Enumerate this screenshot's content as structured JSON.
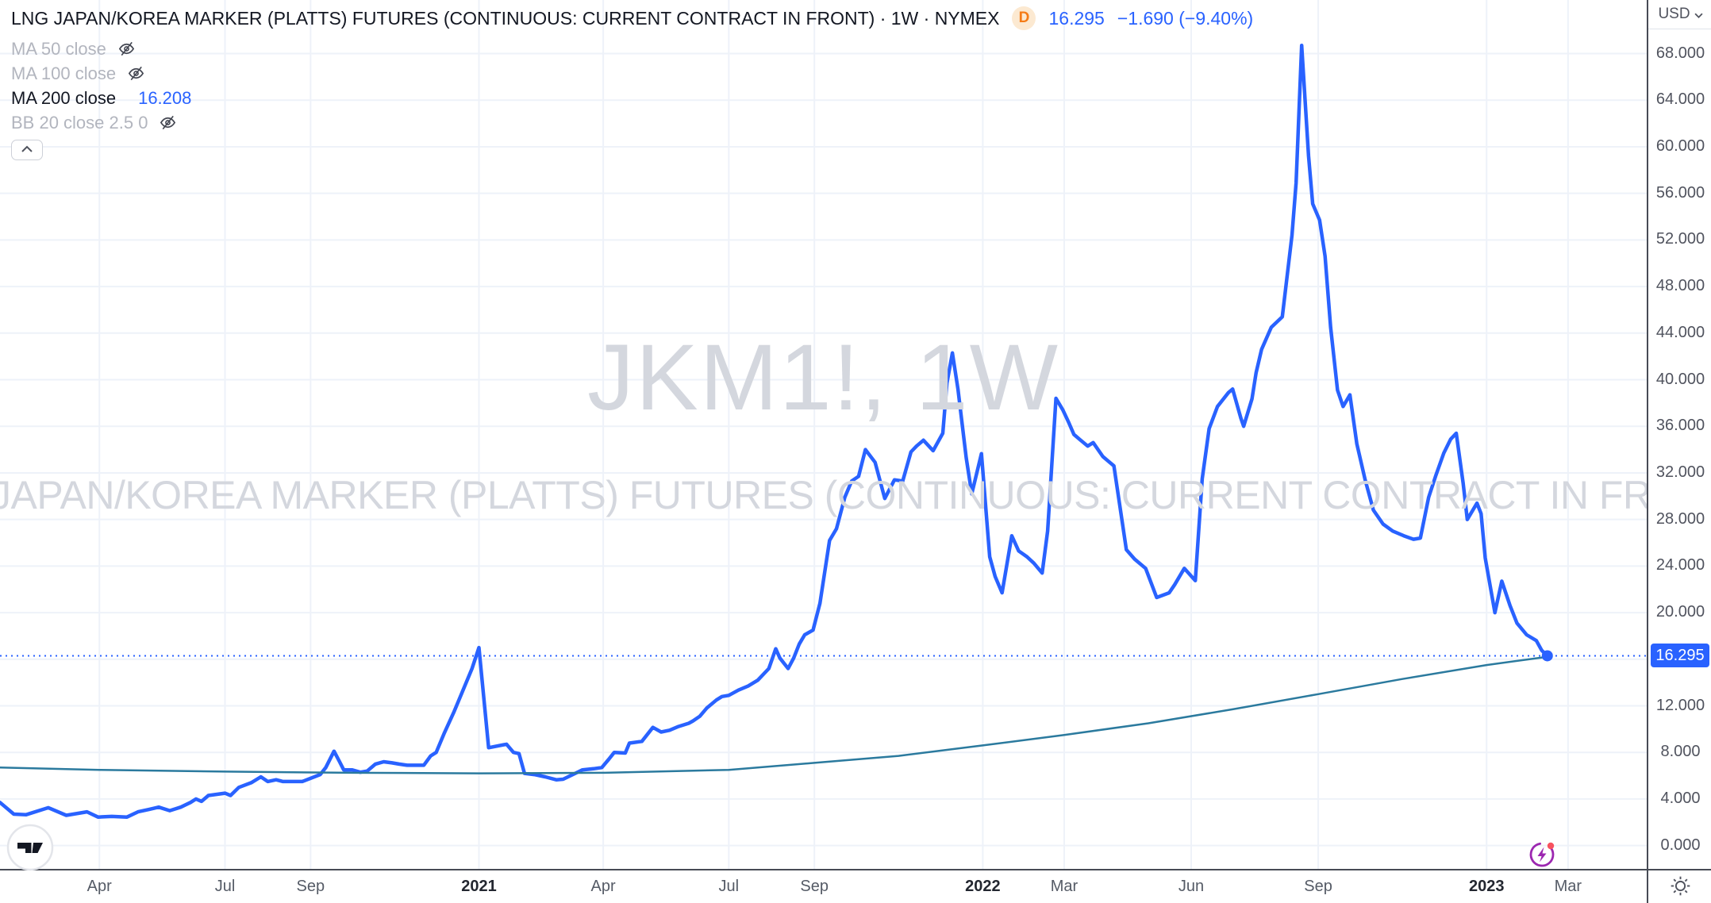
{
  "header": {
    "title": "LNG JAPAN/KOREA MARKER (PLATTS) FUTURES (CONTINUOUS: CURRENT CONTRACT IN FRONT) · 1W · NYMEX",
    "delayed_badge": "D",
    "last_price": "16.295",
    "change": "−1.690 (−9.40%)"
  },
  "legend": {
    "ma50": {
      "label": "MA 50 close"
    },
    "ma100": {
      "label": "MA 100 close"
    },
    "ma200": {
      "label": "MA 200 close",
      "value": "16.208"
    },
    "bb": {
      "label": "BB 20 close 2.5 0"
    }
  },
  "watermark": {
    "line1": "JKM1!, 1W",
    "line2": "LNG JAPAN/KOREA MARKER (PLATTS) FUTURES (CONTINUOUS: CURRENT CONTRACT IN FRONT)"
  },
  "price_scale": {
    "currency": "USD"
  },
  "colors": {
    "accent": "#2962FF",
    "ma200_line": "#2B7A9E",
    "grid": "#EEF2F9",
    "axis_text": "#50535E",
    "badge_orange": "#F57C17",
    "flash_purple": "#9C27B0",
    "alert_red": "#F7525F"
  },
  "chart_data": {
    "type": "line",
    "title": "JKM1!, 1W",
    "symbol": "LNG JAPAN/KOREA MARKER (PLATTS) FUTURES (CONTINUOUS: CURRENT CONTRACT IN FRONT)",
    "interval": "1W",
    "exchange": "NYMEX",
    "currency": "USD",
    "grid": true,
    "x_axis": {
      "min": "2020-01-20",
      "max": "2023-04-27",
      "ticks": [
        {
          "date": "2020-04-01",
          "label": "Apr",
          "major": false
        },
        {
          "date": "2020-07-01",
          "label": "Jul",
          "major": false
        },
        {
          "date": "2020-09-01",
          "label": "Sep",
          "major": false
        },
        {
          "date": "2021-01-01",
          "label": "2021",
          "major": true
        },
        {
          "date": "2021-04-01",
          "label": "Apr",
          "major": false
        },
        {
          "date": "2021-07-01",
          "label": "Jul",
          "major": false
        },
        {
          "date": "2021-09-01",
          "label": "Sep",
          "major": false
        },
        {
          "date": "2022-01-01",
          "label": "2022",
          "major": true
        },
        {
          "date": "2022-03-01",
          "label": "Mar",
          "major": false
        },
        {
          "date": "2022-06-01",
          "label": "Jun",
          "major": false
        },
        {
          "date": "2022-09-01",
          "label": "Sep",
          "major": false
        },
        {
          "date": "2023-01-01",
          "label": "2023",
          "major": true
        },
        {
          "date": "2023-03-01",
          "label": "Mar",
          "major": false
        }
      ]
    },
    "y_axis": {
      "min": -2.0,
      "max": 72.6,
      "tick_min": 0,
      "tick_max": 68,
      "tick_step": 4,
      "decimals": 3
    },
    "last": {
      "date": "2023-02-14",
      "value": 16.295
    },
    "series": [
      {
        "name": "close",
        "color": "#2962FF",
        "width": 4.5,
        "points": [
          [
            "2020-01-20",
            3.7
          ],
          [
            "2020-01-30",
            2.7
          ],
          [
            "2020-02-08",
            2.65
          ],
          [
            "2020-02-24",
            3.25
          ],
          [
            "2020-03-08",
            2.6
          ],
          [
            "2020-03-23",
            2.9
          ],
          [
            "2020-03-31",
            2.45
          ],
          [
            "2020-04-10",
            2.5
          ],
          [
            "2020-04-21",
            2.45
          ],
          [
            "2020-04-29",
            2.9
          ],
          [
            "2020-05-07",
            3.1
          ],
          [
            "2020-05-14",
            3.3
          ],
          [
            "2020-05-22",
            3.0
          ],
          [
            "2020-05-30",
            3.3
          ],
          [
            "2020-06-06",
            3.7
          ],
          [
            "2020-06-10",
            4.0
          ],
          [
            "2020-06-14",
            3.8
          ],
          [
            "2020-06-19",
            4.3
          ],
          [
            "2020-07-01",
            4.5
          ],
          [
            "2020-07-05",
            4.3
          ],
          [
            "2020-07-11",
            5.0
          ],
          [
            "2020-07-20",
            5.4
          ],
          [
            "2020-07-27",
            5.9
          ],
          [
            "2020-08-01",
            5.5
          ],
          [
            "2020-08-07",
            5.65
          ],
          [
            "2020-08-12",
            5.5
          ],
          [
            "2020-08-26",
            5.5
          ],
          [
            "2020-09-08",
            6.1
          ],
          [
            "2020-09-12",
            6.7
          ],
          [
            "2020-09-18",
            8.1
          ],
          [
            "2020-09-22",
            7.2
          ],
          [
            "2020-09-25",
            6.5
          ],
          [
            "2020-10-01",
            6.5
          ],
          [
            "2020-10-07",
            6.3
          ],
          [
            "2020-10-12",
            6.4
          ],
          [
            "2020-10-18",
            7.0
          ],
          [
            "2020-10-24",
            7.2
          ],
          [
            "2020-10-30",
            7.1
          ],
          [
            "2020-11-04",
            7.0
          ],
          [
            "2020-11-10",
            6.9
          ],
          [
            "2020-11-22",
            6.9
          ],
          [
            "2020-11-27",
            7.7
          ],
          [
            "2020-12-01",
            8.0
          ],
          [
            "2020-12-07",
            9.7
          ],
          [
            "2020-12-14",
            11.5
          ],
          [
            "2020-12-21",
            13.5
          ],
          [
            "2020-12-27",
            15.2
          ],
          [
            "2021-01-01",
            17.0
          ],
          [
            "2021-01-08",
            8.4
          ],
          [
            "2021-01-21",
            8.7
          ],
          [
            "2021-01-26",
            8.0
          ],
          [
            "2021-01-30",
            7.9
          ],
          [
            "2021-02-03",
            6.2
          ],
          [
            "2021-02-10",
            6.1
          ],
          [
            "2021-02-18",
            5.9
          ],
          [
            "2021-02-26",
            5.65
          ],
          [
            "2021-03-03",
            5.7
          ],
          [
            "2021-03-10",
            6.1
          ],
          [
            "2021-03-17",
            6.5
          ],
          [
            "2021-03-25",
            6.6
          ],
          [
            "2021-03-31",
            6.7
          ],
          [
            "2021-04-05",
            7.4
          ],
          [
            "2021-04-09",
            8.0
          ],
          [
            "2021-04-17",
            7.95
          ],
          [
            "2021-04-20",
            8.8
          ],
          [
            "2021-04-29",
            8.95
          ],
          [
            "2021-05-07",
            10.15
          ],
          [
            "2021-05-13",
            9.75
          ],
          [
            "2021-05-19",
            9.9
          ],
          [
            "2021-05-25",
            10.2
          ],
          [
            "2021-06-02",
            10.5
          ],
          [
            "2021-06-05",
            10.7
          ],
          [
            "2021-06-10",
            11.1
          ],
          [
            "2021-06-15",
            11.8
          ],
          [
            "2021-06-22",
            12.5
          ],
          [
            "2021-06-26",
            12.8
          ],
          [
            "2021-07-01",
            12.9
          ],
          [
            "2021-07-08",
            13.35
          ],
          [
            "2021-07-15",
            13.7
          ],
          [
            "2021-07-22",
            14.2
          ],
          [
            "2021-07-30",
            15.2
          ],
          [
            "2021-08-04",
            16.9
          ],
          [
            "2021-08-07",
            16.1
          ],
          [
            "2021-08-13",
            15.2
          ],
          [
            "2021-08-17",
            16.1
          ],
          [
            "2021-08-21",
            17.3
          ],
          [
            "2021-08-25",
            18.1
          ],
          [
            "2021-08-31",
            18.5
          ],
          [
            "2021-09-05",
            20.8
          ],
          [
            "2021-09-12",
            26.2
          ],
          [
            "2021-09-17",
            27.2
          ],
          [
            "2021-09-23",
            29.9
          ],
          [
            "2021-09-28",
            31.3
          ],
          [
            "2021-10-03",
            31.7
          ],
          [
            "2021-10-08",
            34.0
          ],
          [
            "2021-10-15",
            32.9
          ],
          [
            "2021-10-22",
            29.8
          ],
          [
            "2021-10-29",
            31.4
          ],
          [
            "2021-11-04",
            31.3
          ],
          [
            "2021-11-10",
            33.8
          ],
          [
            "2021-11-14",
            34.3
          ],
          [
            "2021-11-19",
            34.8
          ],
          [
            "2021-11-26",
            33.9
          ],
          [
            "2021-12-03",
            35.4
          ],
          [
            "2021-12-06",
            39.7
          ],
          [
            "2021-12-10",
            42.3
          ],
          [
            "2021-12-14",
            39.2
          ],
          [
            "2021-12-20",
            33.3
          ],
          [
            "2021-12-24",
            30.2
          ],
          [
            "2021-12-31",
            33.65
          ],
          [
            "2022-01-06",
            24.8
          ],
          [
            "2022-01-10",
            23.1
          ],
          [
            "2022-01-15",
            21.7
          ],
          [
            "2022-01-22",
            26.6
          ],
          [
            "2022-01-27",
            25.3
          ],
          [
            "2022-02-02",
            24.8
          ],
          [
            "2022-02-07",
            24.25
          ],
          [
            "2022-02-13",
            23.4
          ],
          [
            "2022-02-17",
            27.0
          ],
          [
            "2022-02-23",
            38.4
          ],
          [
            "2022-02-28",
            37.4
          ],
          [
            "2022-03-04",
            36.4
          ],
          [
            "2022-03-08",
            35.3
          ],
          [
            "2022-03-12",
            34.9
          ],
          [
            "2022-03-18",
            34.3
          ],
          [
            "2022-03-22",
            34.6
          ],
          [
            "2022-03-29",
            33.4
          ],
          [
            "2022-04-06",
            32.6
          ],
          [
            "2022-04-15",
            25.4
          ],
          [
            "2022-04-21",
            24.6
          ],
          [
            "2022-04-29",
            23.8
          ],
          [
            "2022-05-07",
            21.3
          ],
          [
            "2022-05-16",
            21.7
          ],
          [
            "2022-05-20",
            22.4
          ],
          [
            "2022-05-27",
            23.8
          ],
          [
            "2022-06-04",
            22.75
          ],
          [
            "2022-06-09",
            31.5
          ],
          [
            "2022-06-14",
            35.8
          ],
          [
            "2022-06-20",
            37.7
          ],
          [
            "2022-06-28",
            38.9
          ],
          [
            "2022-07-01",
            39.2
          ],
          [
            "2022-07-07",
            36.7
          ],
          [
            "2022-07-09",
            36.0
          ],
          [
            "2022-07-15",
            38.35
          ],
          [
            "2022-07-18",
            40.6
          ],
          [
            "2022-07-22",
            42.6
          ],
          [
            "2022-07-29",
            44.5
          ],
          [
            "2022-08-06",
            45.4
          ],
          [
            "2022-08-13",
            52.4
          ],
          [
            "2022-08-16",
            56.9
          ],
          [
            "2022-08-20",
            68.7
          ],
          [
            "2022-08-25",
            59.2
          ],
          [
            "2022-08-28",
            55.1
          ],
          [
            "2022-09-02",
            53.7
          ],
          [
            "2022-09-06",
            50.6
          ],
          [
            "2022-09-10",
            44.5
          ],
          [
            "2022-09-15",
            39.1
          ],
          [
            "2022-09-19",
            37.7
          ],
          [
            "2022-09-24",
            38.7
          ],
          [
            "2022-09-29",
            34.5
          ],
          [
            "2022-10-05",
            31.4
          ],
          [
            "2022-10-11",
            28.8
          ],
          [
            "2022-10-18",
            27.6
          ],
          [
            "2022-10-25",
            27.0
          ],
          [
            "2022-11-02",
            26.6
          ],
          [
            "2022-11-09",
            26.3
          ],
          [
            "2022-11-14",
            26.4
          ],
          [
            "2022-11-20",
            29.9
          ],
          [
            "2022-11-25",
            31.7
          ],
          [
            "2022-12-01",
            33.7
          ],
          [
            "2022-12-06",
            34.9
          ],
          [
            "2022-12-10",
            35.4
          ],
          [
            "2022-12-15",
            31.1
          ],
          [
            "2022-12-18",
            28.0
          ],
          [
            "2022-12-25",
            29.4
          ],
          [
            "2022-12-28",
            28.5
          ],
          [
            "2022-12-31",
            24.7
          ],
          [
            "2023-01-07",
            20.0
          ],
          [
            "2023-01-12",
            22.7
          ],
          [
            "2023-01-18",
            20.6
          ],
          [
            "2023-01-23",
            19.1
          ],
          [
            "2023-01-30",
            18.1
          ],
          [
            "2023-02-06",
            17.6
          ],
          [
            "2023-02-10",
            16.75
          ],
          [
            "2023-02-14",
            16.295
          ]
        ]
      },
      {
        "name": "MA 200 close",
        "color": "#2B7A9E",
        "width": 2.5,
        "points": [
          [
            "2020-01-20",
            6.7
          ],
          [
            "2020-04-01",
            6.5
          ],
          [
            "2020-07-01",
            6.35
          ],
          [
            "2020-10-01",
            6.25
          ],
          [
            "2021-01-01",
            6.2
          ],
          [
            "2021-04-01",
            6.25
          ],
          [
            "2021-07-01",
            6.5
          ],
          [
            "2021-09-01",
            7.1
          ],
          [
            "2021-11-01",
            7.7
          ],
          [
            "2022-01-01",
            8.6
          ],
          [
            "2022-03-01",
            9.5
          ],
          [
            "2022-05-01",
            10.5
          ],
          [
            "2022-07-01",
            11.7
          ],
          [
            "2022-09-01",
            13.0
          ],
          [
            "2022-11-01",
            14.3
          ],
          [
            "2023-01-01",
            15.5
          ],
          [
            "2023-02-14",
            16.208
          ]
        ]
      }
    ]
  }
}
